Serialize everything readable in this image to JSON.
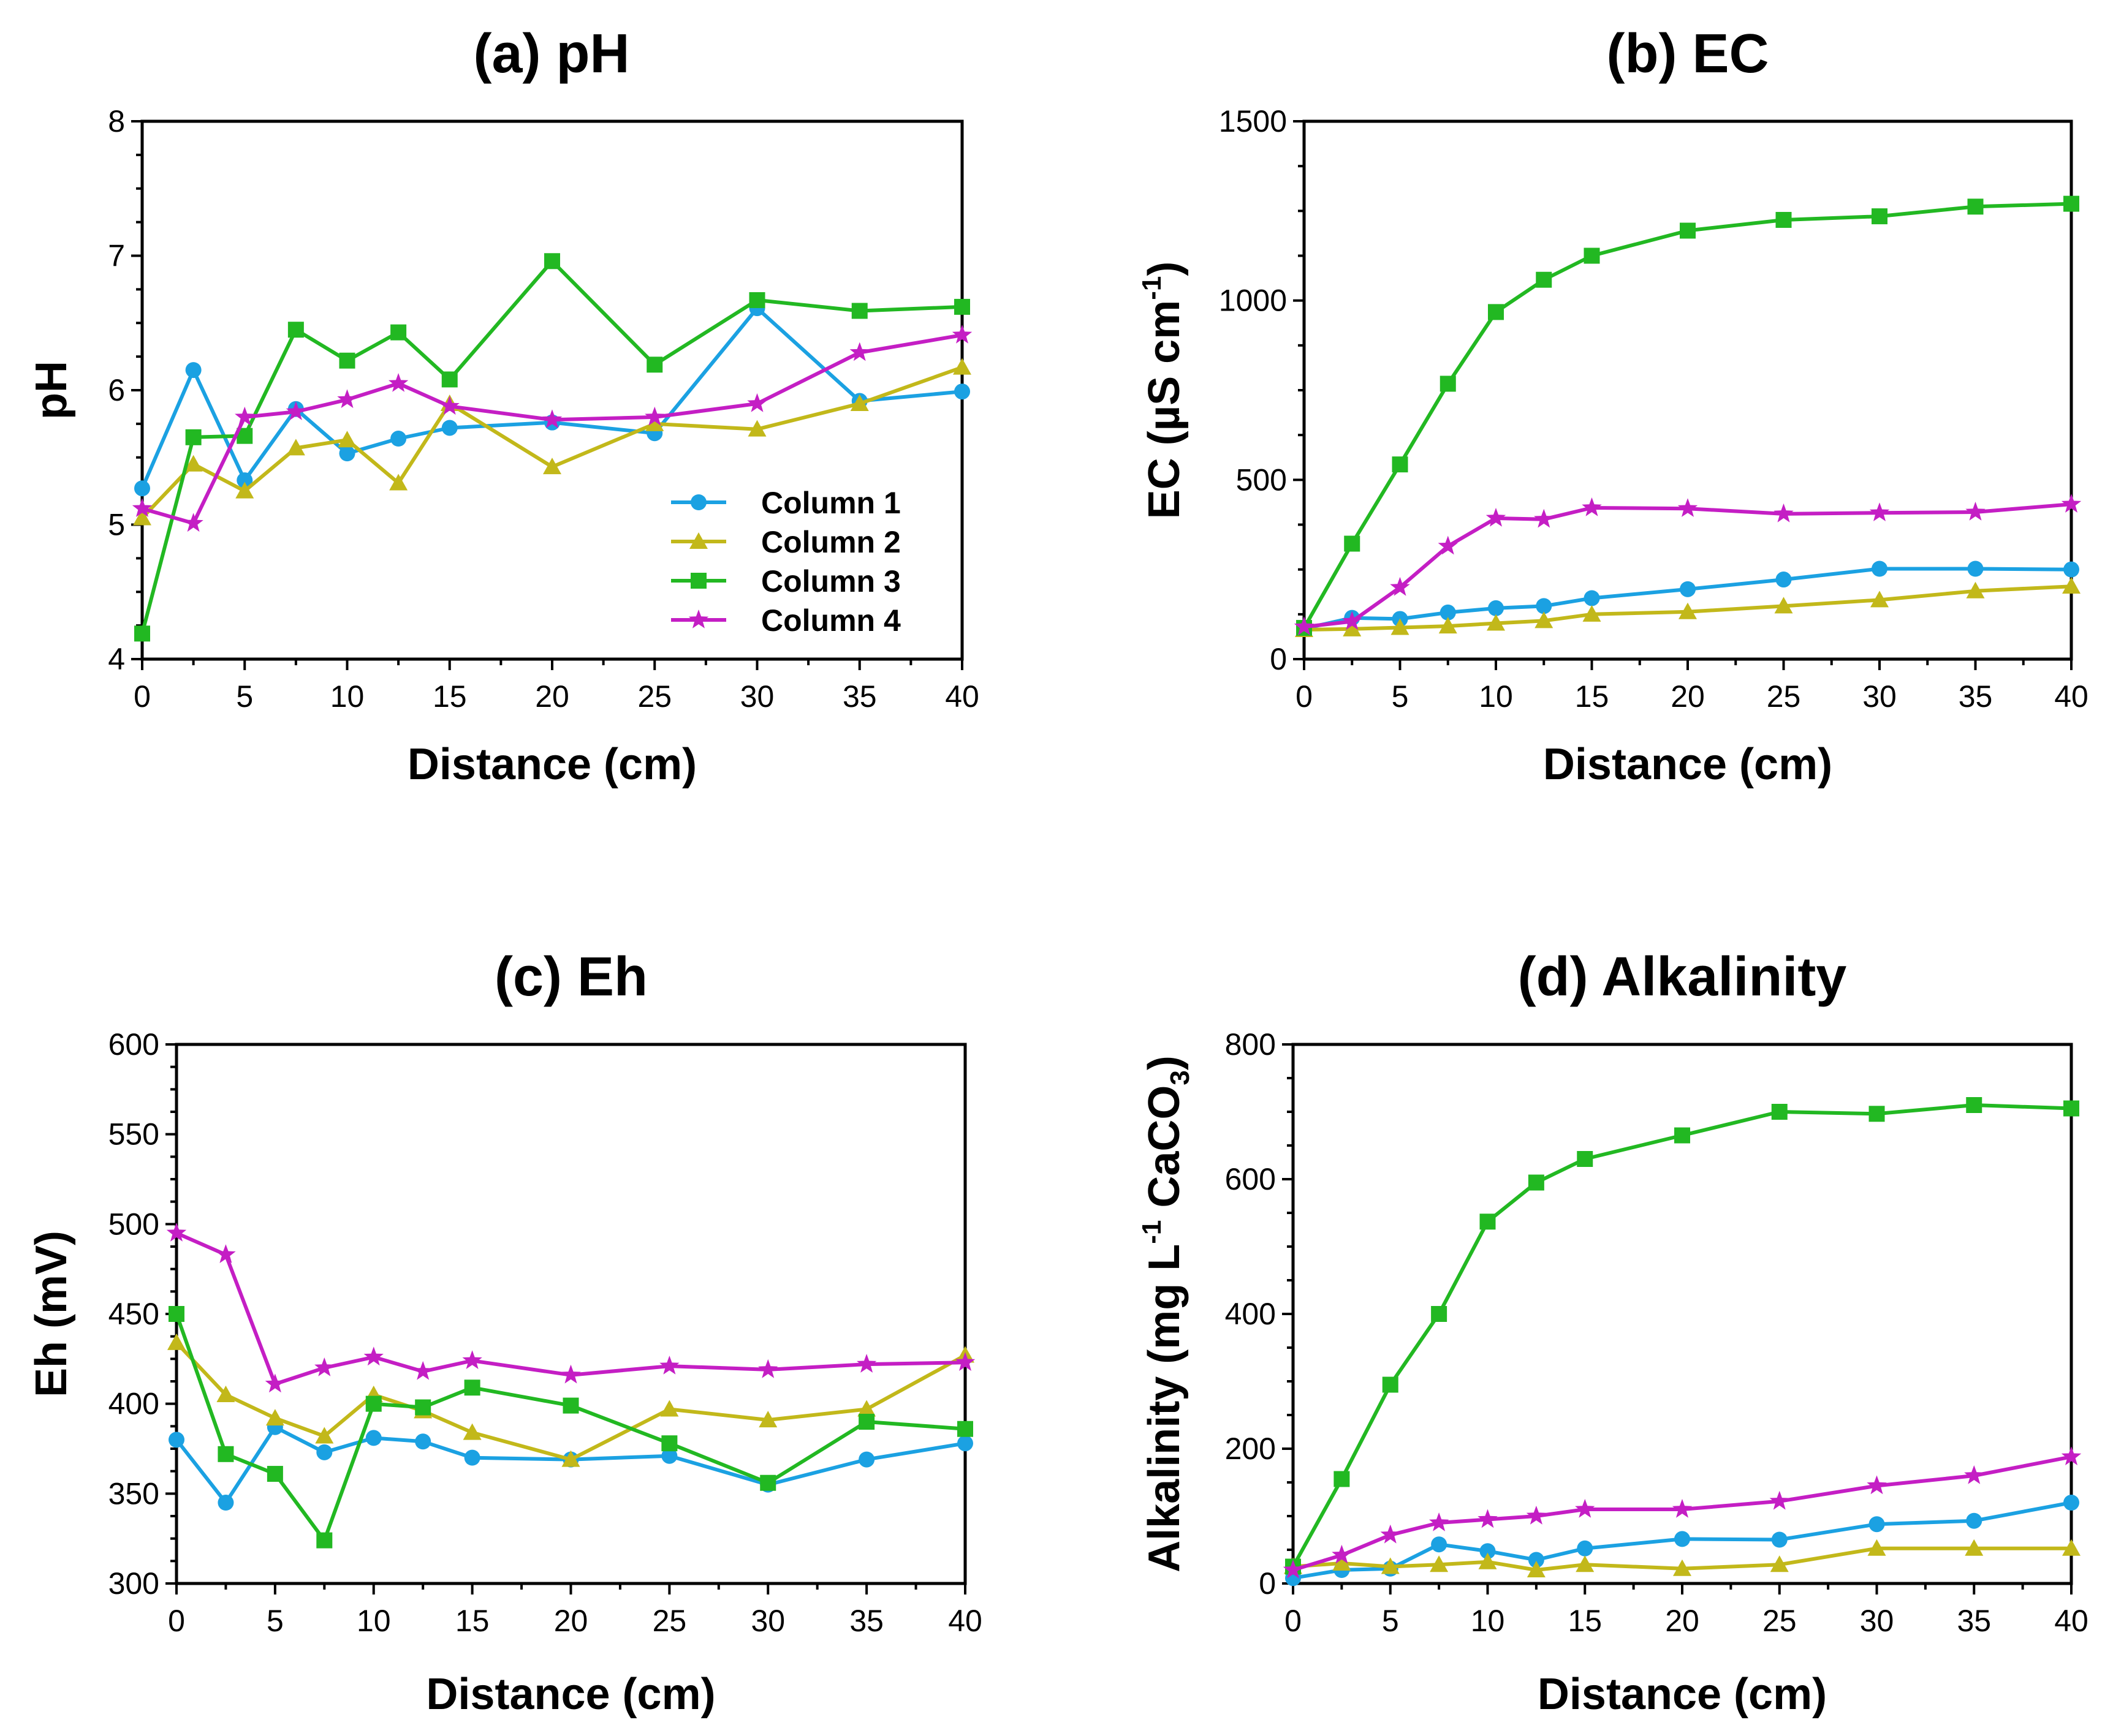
{
  "figure": {
    "series_styles": [
      {
        "name": "Column 1",
        "color": "#1ba1e2",
        "marker": "circle"
      },
      {
        "name": "Column 2",
        "color": "#c2b81a",
        "marker": "triangle"
      },
      {
        "name": "Column 3",
        "color": "#22b822",
        "marker": "square"
      },
      {
        "name": "Column 4",
        "color": "#c41ec4",
        "marker": "star"
      }
    ]
  },
  "chart_data": [
    {
      "type": "line",
      "title": "(a) pH",
      "xlabel": "Distance (cm)",
      "ylabel": "pH",
      "xlim": [
        0,
        40
      ],
      "ylim": [
        4,
        8
      ],
      "xticks": [
        "0",
        "5",
        "10",
        "15",
        "20",
        "25",
        "30",
        "35",
        "40"
      ],
      "yticks": [
        "4",
        "5",
        "6",
        "7",
        "8"
      ],
      "legend": "right-center",
      "x": [
        0,
        2.5,
        5,
        7.5,
        10,
        12.5,
        15,
        20,
        25,
        30,
        35,
        40
      ],
      "series": [
        {
          "name": "Column 1",
          "values": [
            5.27,
            6.15,
            5.33,
            5.86,
            5.53,
            5.64,
            5.72,
            5.76,
            5.68,
            6.61,
            5.92,
            5.99
          ]
        },
        {
          "name": "Column 2",
          "values": [
            5.05,
            5.45,
            5.25,
            5.57,
            5.63,
            5.31,
            5.9,
            5.43,
            5.75,
            5.71,
            5.9,
            6.17
          ]
        },
        {
          "name": "Column 3",
          "values": [
            4.19,
            5.65,
            5.66,
            6.45,
            6.22,
            6.43,
            6.08,
            6.96,
            6.19,
            6.67,
            6.59,
            6.62
          ]
        },
        {
          "name": "Column 4",
          "values": [
            5.12,
            5.01,
            5.8,
            5.84,
            5.93,
            6.05,
            5.88,
            5.78,
            5.8,
            5.9,
            6.28,
            6.41
          ]
        }
      ]
    },
    {
      "type": "line",
      "title": "(b) EC",
      "xlabel": "Distance (cm)",
      "ylabel": "EC (µS cm",
      "ylabel_sup": "-1",
      "ylabel_tail": ")",
      "xlim": [
        0,
        40
      ],
      "ylim": [
        0,
        1500
      ],
      "xticks": [
        "0",
        "5",
        "10",
        "15",
        "20",
        "25",
        "30",
        "35",
        "40"
      ],
      "yticks": [
        "0",
        "500",
        "1000",
        "1500"
      ],
      "x": [
        0,
        2.5,
        5,
        7.5,
        10,
        12.5,
        15,
        20,
        25,
        30,
        35,
        40
      ],
      "series": [
        {
          "name": "Column 1",
          "values": [
            85,
            115,
            112,
            130,
            142,
            148,
            170,
            195,
            222,
            252,
            252,
            250
          ]
        },
        {
          "name": "Column 2",
          "values": [
            82,
            84,
            88,
            92,
            100,
            107,
            125,
            132,
            148,
            165,
            190,
            203
          ]
        },
        {
          "name": "Column 3",
          "values": [
            87,
            322,
            543,
            768,
            968,
            1058,
            1125,
            1195,
            1225,
            1235,
            1262,
            1270
          ]
        },
        {
          "name": "Column 4",
          "values": [
            90,
            105,
            200,
            315,
            393,
            390,
            422,
            420,
            405,
            408,
            410,
            432
          ]
        }
      ]
    },
    {
      "type": "line",
      "title": "(c) Eh",
      "xlabel": "Distance (cm)",
      "ylabel": "Eh (mV)",
      "xlim": [
        0,
        40
      ],
      "ylim": [
        300,
        600
      ],
      "xticks": [
        "0",
        "5",
        "10",
        "15",
        "20",
        "25",
        "30",
        "35",
        "40"
      ],
      "yticks": [
        "300",
        "350",
        "400",
        "450",
        "500",
        "550",
        "600"
      ],
      "x": [
        0,
        2.5,
        5,
        7.5,
        10,
        12.5,
        15,
        20,
        25,
        30,
        35,
        40
      ],
      "series": [
        {
          "name": "Column 1",
          "values": [
            380,
            345,
            387,
            373,
            381,
            379,
            370,
            369,
            371,
            355,
            369,
            378
          ]
        },
        {
          "name": "Column 2",
          "values": [
            434,
            405,
            392,
            382,
            405,
            396,
            384,
            369,
            397,
            391,
            397,
            427
          ]
        },
        {
          "name": "Column 3",
          "values": [
            450,
            372,
            361,
            324,
            400,
            398,
            409,
            399,
            378,
            356,
            390,
            386
          ]
        },
        {
          "name": "Column 4",
          "values": [
            495,
            483,
            411,
            420,
            426,
            418,
            424,
            416,
            421,
            419,
            422,
            423
          ]
        }
      ]
    },
    {
      "type": "line",
      "title": "(d) Alkalinity",
      "xlabel": "Distance (cm)",
      "ylabel": "Alkalinity (mg L",
      "ylabel_sup": "-1",
      "ylabel_tail": " CaCO",
      "ylabel_sub": "3",
      "ylabel_end": ")",
      "xlim": [
        0,
        40
      ],
      "ylim": [
        0,
        800
      ],
      "xticks": [
        "0",
        "5",
        "10",
        "15",
        "20",
        "25",
        "30",
        "35",
        "40"
      ],
      "yticks": [
        "0",
        "200",
        "400",
        "600",
        "800"
      ],
      "x": [
        0,
        2.5,
        5,
        7.5,
        10,
        12.5,
        15,
        20,
        25,
        30,
        35,
        40
      ],
      "series": [
        {
          "name": "Column 1",
          "values": [
            8,
            20,
            22,
            58,
            48,
            35,
            52,
            66,
            65,
            88,
            93,
            120
          ]
        },
        {
          "name": "Column 2",
          "values": [
            25,
            30,
            25,
            28,
            32,
            20,
            28,
            22,
            28,
            52,
            52,
            52
          ]
        },
        {
          "name": "Column 3",
          "values": [
            25,
            155,
            295,
            400,
            537,
            595,
            630,
            665,
            700,
            697,
            710,
            705
          ]
        },
        {
          "name": "Column 4",
          "values": [
            20,
            42,
            72,
            90,
            95,
            100,
            110,
            110,
            122,
            145,
            160,
            188
          ]
        }
      ]
    }
  ]
}
